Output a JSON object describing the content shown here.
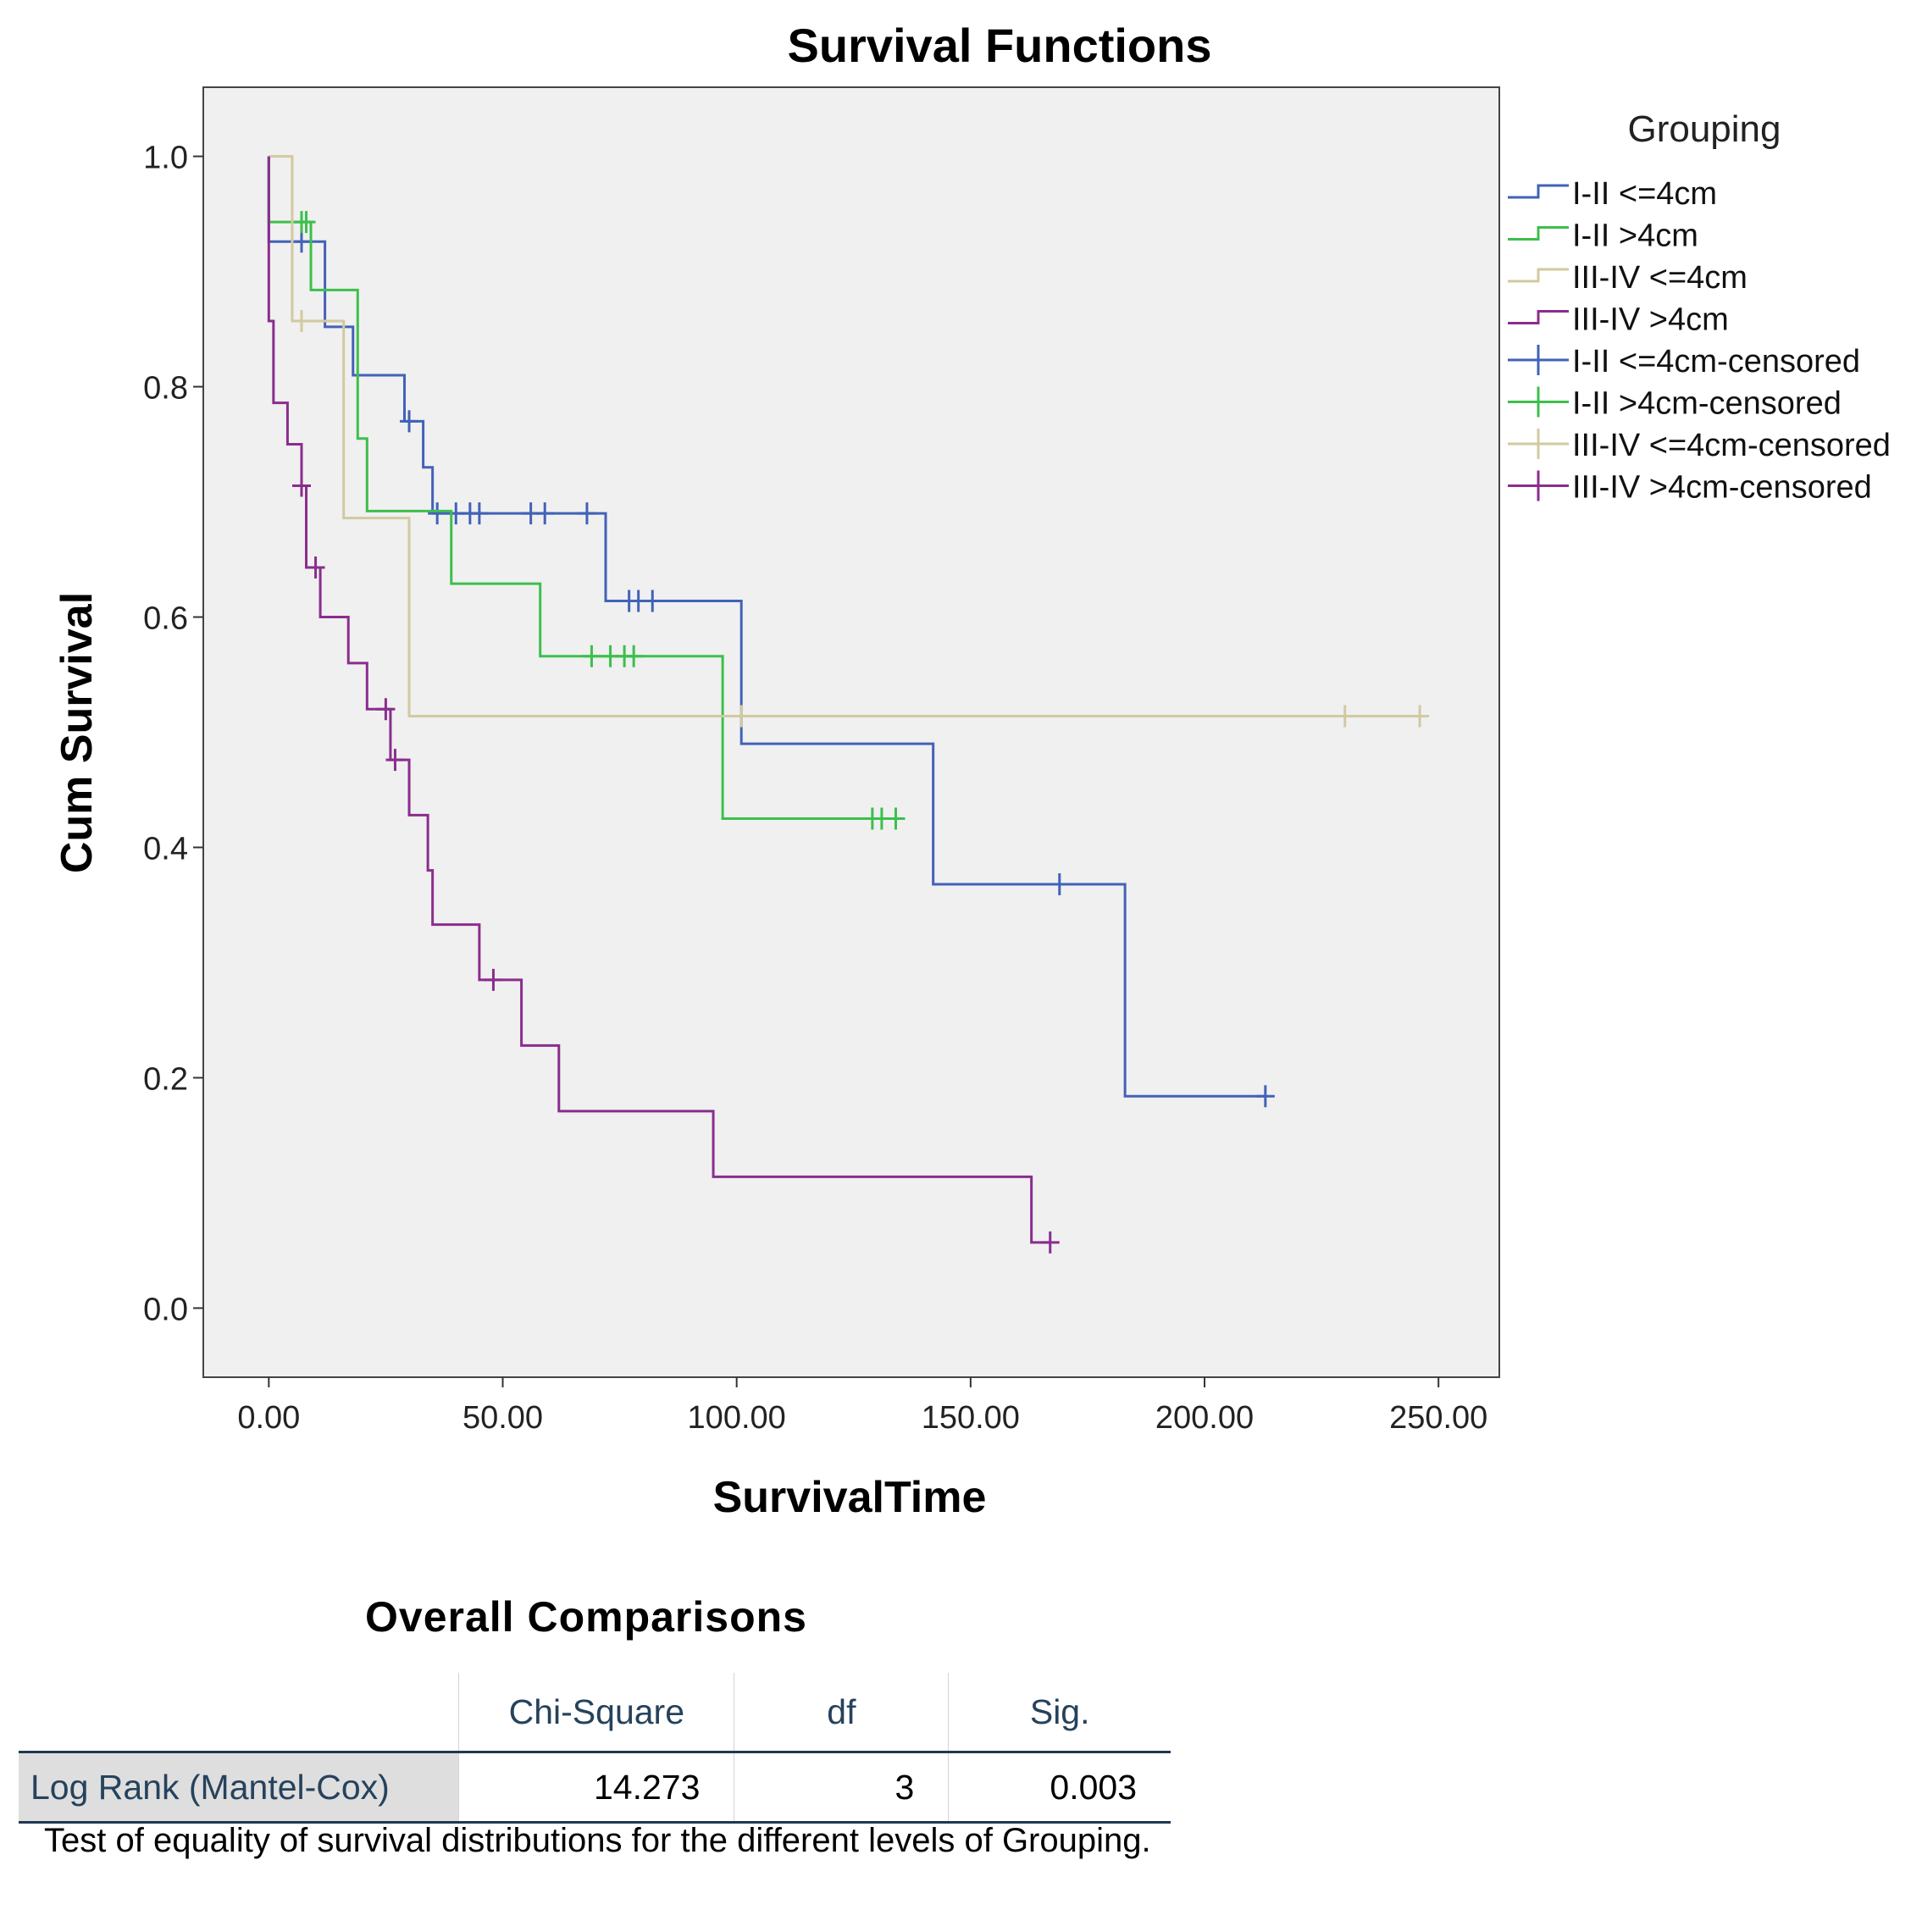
{
  "chart_data": {
    "type": "line",
    "step": true,
    "title": "Survival Functions",
    "xlabel": "SurvivalTime",
    "ylabel": "Cum Survival",
    "xlim": [
      -14,
      263
    ],
    "ylim": [
      -0.06,
      1.06
    ],
    "xticks": [
      0,
      50,
      100,
      150,
      200,
      250
    ],
    "xtick_labels": [
      "0.00",
      "50.00",
      "100.00",
      "150.00",
      "200.00",
      "250.00"
    ],
    "yticks": [
      0,
      0.2,
      0.4,
      0.6,
      0.8,
      1.0
    ],
    "ytick_labels": [
      "0.0",
      "0.2",
      "0.4",
      "0.6",
      "0.8",
      "1.0"
    ],
    "grid": false,
    "legend": {
      "title": "Grouping",
      "position": "right",
      "entries": [
        {
          "label": "I-II <=4cm",
          "kind": "line",
          "series": 0
        },
        {
          "label": "I-II >4cm",
          "kind": "line",
          "series": 1
        },
        {
          "label": "III-IV <=4cm",
          "kind": "line",
          "series": 2
        },
        {
          "label": "III-IV >4cm",
          "kind": "line",
          "series": 3
        },
        {
          "label": "I-II <=4cm-censored",
          "kind": "censor",
          "series": 0
        },
        {
          "label": "I-II >4cm-censored",
          "kind": "censor",
          "series": 1
        },
        {
          "label": "III-IV <=4cm-censored",
          "kind": "censor",
          "series": 2
        },
        {
          "label": "III-IV >4cm-censored",
          "kind": "censor",
          "series": 3
        }
      ]
    },
    "series": [
      {
        "name": "I-II <=4cm",
        "color": "#4262b8",
        "steps": [
          [
            0,
            1.0
          ],
          [
            0,
            0.926
          ],
          [
            12,
            0.852
          ],
          [
            18,
            0.81
          ],
          [
            29,
            0.77
          ],
          [
            33,
            0.73
          ],
          [
            35,
            0.69
          ],
          [
            72,
            0.614
          ],
          [
            101,
            0.49
          ],
          [
            142,
            0.368
          ],
          [
            183,
            0.184
          ]
        ],
        "end": 213,
        "censored": [
          [
            7,
            0.926
          ],
          [
            30,
            0.77
          ],
          [
            36,
            0.69
          ],
          [
            40,
            0.69
          ],
          [
            43,
            0.69
          ],
          [
            45,
            0.69
          ],
          [
            56,
            0.69
          ],
          [
            59,
            0.69
          ],
          [
            68,
            0.69
          ],
          [
            77,
            0.614
          ],
          [
            79,
            0.614
          ],
          [
            82,
            0.614
          ],
          [
            169,
            0.368
          ],
          [
            213,
            0.184
          ]
        ]
      },
      {
        "name": "I-II >4cm",
        "color": "#3cbf4c",
        "steps": [
          [
            0,
            1.0
          ],
          [
            0,
            0.943
          ],
          [
            9,
            0.884
          ],
          [
            19,
            0.755
          ],
          [
            21,
            0.692
          ],
          [
            39,
            0.629
          ],
          [
            58,
            0.566
          ],
          [
            97,
            0.425
          ]
        ],
        "end": 135,
        "censored": [
          [
            7,
            0.943
          ],
          [
            8,
            0.943
          ],
          [
            69,
            0.566
          ],
          [
            73,
            0.566
          ],
          [
            76,
            0.566
          ],
          [
            78,
            0.566
          ],
          [
            129,
            0.425
          ],
          [
            131,
            0.425
          ],
          [
            134,
            0.425
          ]
        ]
      },
      {
        "name": "III-IV <=4cm",
        "color": "#d2c9a0",
        "steps": [
          [
            0,
            1.0
          ],
          [
            5,
            0.857
          ],
          [
            16,
            0.686
          ],
          [
            30,
            0.514
          ]
        ],
        "end": 246,
        "censored": [
          [
            7,
            0.857
          ],
          [
            101,
            0.514
          ],
          [
            230,
            0.514
          ],
          [
            246,
            0.514
          ]
        ]
      },
      {
        "name": "III-IV >4cm",
        "color": "#8a2d8e",
        "steps": [
          [
            0,
            1.0
          ],
          [
            0,
            0.857
          ],
          [
            1,
            0.786
          ],
          [
            4,
            0.75
          ],
          [
            7,
            0.714
          ],
          [
            8,
            0.643
          ],
          [
            11,
            0.6
          ],
          [
            17,
            0.56
          ],
          [
            21,
            0.52
          ],
          [
            26,
            0.476
          ],
          [
            30,
            0.428
          ],
          [
            34,
            0.38
          ],
          [
            35,
            0.333
          ],
          [
            45,
            0.285
          ],
          [
            54,
            0.228
          ],
          [
            62,
            0.171
          ],
          [
            95,
            0.114
          ],
          [
            163,
            0.057
          ]
        ],
        "end": 167,
        "censored": [
          [
            7,
            0.714
          ],
          [
            10,
            0.643
          ],
          [
            25,
            0.52
          ],
          [
            27,
            0.476
          ],
          [
            48,
            0.285
          ],
          [
            167,
            0.057
          ]
        ]
      }
    ]
  },
  "comparisons": {
    "title": "Overall Comparisons",
    "headers": [
      "Chi-Square",
      "df",
      "Sig."
    ],
    "row_label": "Log Rank (Mantel-Cox)",
    "chi_square": "14.273",
    "df": "3",
    "sig": "0.003",
    "footnote": "Test of equality of survival distributions for the different levels of Grouping."
  }
}
